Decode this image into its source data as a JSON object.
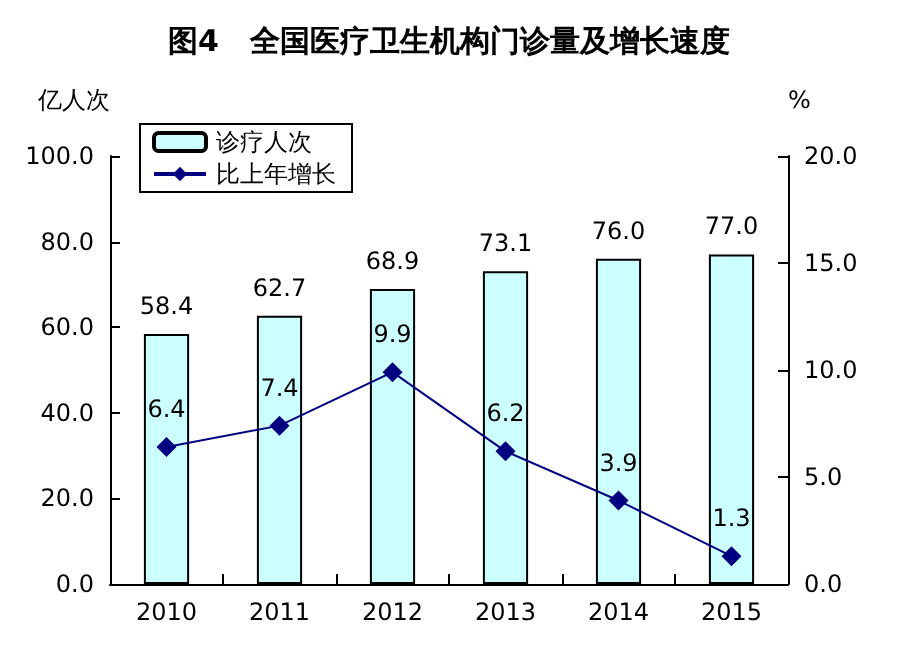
{
  "chart_data": {
    "type": "bar",
    "title": "图4   全国医疗卫生机构门诊量及增长速度",
    "ylabel": "亿人次",
    "y2label": "%",
    "categories": [
      "2010",
      "2011",
      "2012",
      "2013",
      "2014",
      "2015"
    ],
    "series": [
      {
        "name": "诊疗人次",
        "color": "#ccffff",
        "values": [
          58.4,
          62.7,
          68.9,
          73.1,
          76.0,
          77.0
        ],
        "value_labels": [
          "58.4",
          "62.7",
          "68.9",
          "73.1",
          "76.0",
          "77.0"
        ]
      },
      {
        "name": "比上年增长",
        "type": "line",
        "axis": "y2",
        "color": "#000080",
        "marker": "diamond",
        "values": [
          6.4,
          7.4,
          9.9,
          6.2,
          3.9,
          1.3
        ],
        "value_labels": [
          "6.4",
          "7.4",
          "9.9",
          "6.2",
          "3.9",
          "1.3"
        ]
      }
    ],
    "ylim": [
      0,
      100
    ],
    "yticks": [
      {
        "value": 0,
        "label": "0.0"
      },
      {
        "value": 20,
        "label": "20.0"
      },
      {
        "value": 40,
        "label": "40.0"
      },
      {
        "value": 60,
        "label": "60.0"
      },
      {
        "value": 80,
        "label": "80.0"
      },
      {
        "value": 100,
        "label": "100.0"
      }
    ],
    "y2lim": [
      0,
      20
    ],
    "y2ticks": [
      {
        "value": 0,
        "label": "0.0"
      },
      {
        "value": 5,
        "label": "5.0"
      },
      {
        "value": 10,
        "label": "10.0"
      },
      {
        "value": 15,
        "label": "15.0"
      },
      {
        "value": 20,
        "label": "20.0"
      }
    ],
    "grid": false,
    "legend": "top left"
  }
}
